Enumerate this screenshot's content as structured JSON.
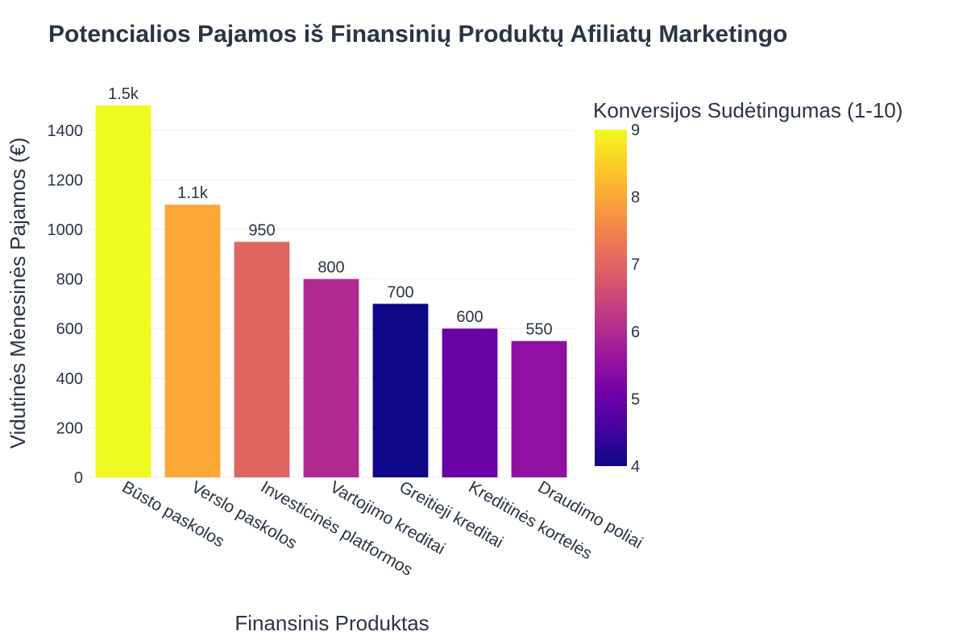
{
  "chart_data": {
    "type": "bar",
    "title": "Potencialios Pajamos iš Finansinių Produktų Afiliatų Marketingo",
    "xlabel": "Finansinis Produktas",
    "ylabel": "Vidutinės Mėnesinės Pajamos (€)",
    "categories": [
      "Būsto paskolos",
      "Verslo paskolos",
      "Investicinės platformos",
      "Vartojimo kreditai",
      "Greitieji kreditai",
      "Kreditinės kortelės",
      "Draudimo poliai"
    ],
    "values": [
      1500,
      1100,
      950,
      800,
      700,
      600,
      550
    ],
    "value_labels": [
      "1.5k",
      "1.1k",
      "950",
      "800",
      "700",
      "600",
      "550"
    ],
    "color_values": [
      9,
      8,
      7,
      6,
      4,
      5,
      5.5
    ],
    "ylim": [
      0,
      1500
    ],
    "yticks": [
      0,
      200,
      400,
      600,
      800,
      1000,
      1200,
      1400
    ],
    "grid": true,
    "colorbar": {
      "title": "Konversijos Sudėtingumas (1-10)",
      "range": [
        4,
        9
      ],
      "ticks": [
        4,
        5,
        6,
        7,
        8,
        9
      ],
      "colorscale": [
        "#0d0887",
        "#46039f",
        "#7201a8",
        "#9c179e",
        "#bd3786",
        "#d8576b",
        "#ed7953",
        "#fb9f3a",
        "#fdca26",
        "#f0f921"
      ]
    }
  }
}
